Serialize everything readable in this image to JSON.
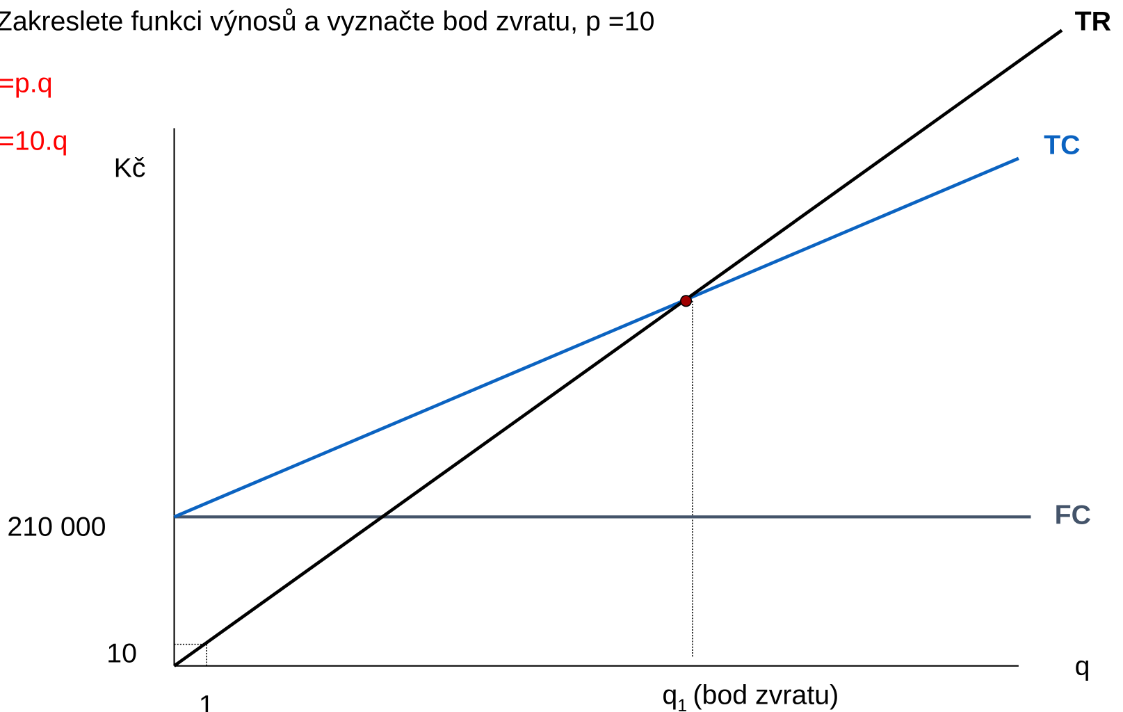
{
  "title": "Zakreslete funkci výnosů a vyznačte bod zvratu, p =10",
  "formulas": [
    "=p.q",
    "=10.q"
  ],
  "axes": {
    "y_label": "Kč",
    "x_label": "q",
    "y_marks": [
      "210 000",
      "10"
    ],
    "x_marks": [
      "1"
    ]
  },
  "break_even": {
    "symbol": "q",
    "subscript": "1",
    "text": "(bod zvratu)"
  },
  "curves": {
    "tr": "TR",
    "tc": "TC",
    "fc": "FC"
  }
}
